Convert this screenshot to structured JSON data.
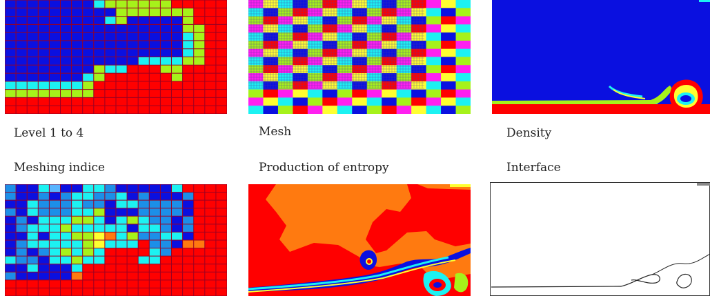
{
  "captions": {
    "level": "Level 1 to 4",
    "mesh": "Mesh",
    "density": "Density",
    "meshing_indice": "Meshing indice",
    "entropy": "Production of entropy",
    "interface": "Interface"
  },
  "colors": {
    "red": "#ff0000",
    "blue": "#0a10e0",
    "cyan": "#1cf2f2",
    "green": "#a6f21a",
    "magenta": "#ff1ff0",
    "yellow": "#ffff30",
    "orange": "#ff7a10",
    "grid": "#990022",
    "mesh_line": "#4a3aa0"
  },
  "level_grid": [
    "BBBBBBBBCGGGGGGRRRRR",
    "BBBBBBBBBBGGGGGGGRRR",
    "BBBBBBBBBCGBBBBBGRRR",
    "BBBBBBBBBBBBBBBBGGRR",
    "BBBBBBBBBBBBBBBBCGRR",
    "BBBBBBBBBBBBBBBBCGRR",
    "BBBBBBBBBBBBBBBBCGRR",
    "BBBBBBBBBBBBCCCCGGRR",
    "BBBBBBBBGCCRRRGGRRRR",
    "BBBBBBBCGRRRRRRGRRRR",
    "CCCCCCCGRRRRRRRRRRRR",
    "GGGGGGGGRRRRRRRRRRRR",
    "RRRRRRRRRRRRRRRRRRRR",
    "RRRRRRRRRRRRRRRRRRRR"
  ],
  "meshing_grid": [
    "SBBCLBBCCSBBBBBCRRRR",
    "SBBSBSCCSSCBSBBBSRRR",
    "BBCSSSCSSBCCSSSSBRRR",
    "SBCSSSCCGBBBSSSSBRRR",
    "BSBCCCGGCBCGCSSBSRRR",
    "BSCCCGCCCCCBCCSBSRRR",
    "BBCBCCGGYOCGSSCCBRRR",
    "BSCCCCCGYCCCRSSBOORR",
    "BSBSCGCGCRRRRCSRRRRR",
    "CSSBCCGCCRRRCCRRRRRR",
    "BBCBBBCRRRRRRRRRRRRR",
    "SBBBBBORRRRRRRRRRRRR",
    "RRRRRRRRRRRRRRRRRRRR",
    "RRRRRRRRRRRRRRRRRRRR"
  ],
  "mesh_palette": [
    "#ff1ff0",
    "#ffff30",
    "#1cf2f2",
    "#0a10e0",
    "#a6f21a",
    "#ff0000"
  ]
}
